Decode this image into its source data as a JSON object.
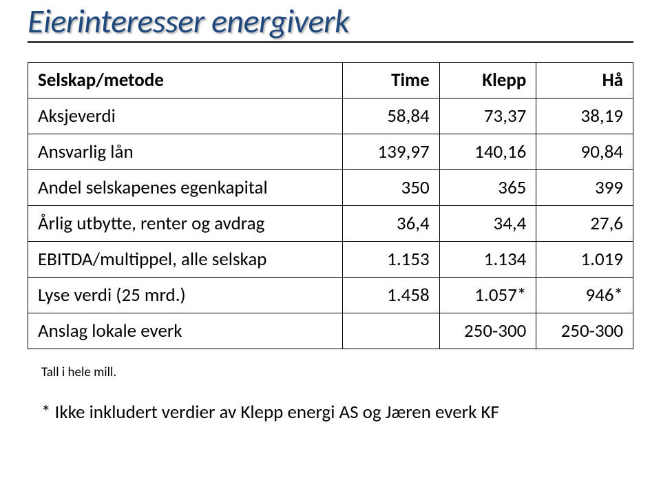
{
  "title": {
    "text": "Eierinteresser energiverk",
    "color": "#1f497d",
    "shadow_color": "rgba(140,140,140,0.65)",
    "fontsize": 48
  },
  "table": {
    "border_color": "#000000",
    "header_fontweight": 700,
    "cell_fontsize": 27,
    "columns": [
      {
        "label": "Selskap/metode",
        "align": "left"
      },
      {
        "label": "Time",
        "align": "right"
      },
      {
        "label": "Klepp",
        "align": "right"
      },
      {
        "label": "Hå",
        "align": "right"
      }
    ],
    "rows": [
      {
        "label": "Aksjeverdi",
        "cells": [
          "58,84",
          "73,37",
          "38,19"
        ]
      },
      {
        "label": "Ansvarlig lån",
        "cells": [
          "139,97",
          "140,16",
          "90,84"
        ]
      },
      {
        "label": "Andel selskapenes egenkapital",
        "cells": [
          "350",
          "365",
          "399"
        ]
      },
      {
        "label": "Årlig utbytte, renter og avdrag",
        "cells": [
          "36,4",
          "34,4",
          "27,6"
        ]
      },
      {
        "label": "EBITDA/multippel, alle selskap",
        "cells": [
          "1.153",
          "1.134",
          "1.019"
        ]
      },
      {
        "label": "Lyse verdi (25 mrd.)",
        "cells": [
          "1.458",
          "1.057*",
          "946*"
        ]
      },
      {
        "label": "Anslag lokale everk",
        "cells": [
          "",
          "250-300",
          "250-300"
        ]
      }
    ]
  },
  "footnotes": {
    "note1": "Tall i hele mill.",
    "note2": "* Ikke inkludert verdier av Klepp energi AS og Jæren everk KF"
  },
  "colors": {
    "background": "#ffffff",
    "text": "#000000"
  }
}
